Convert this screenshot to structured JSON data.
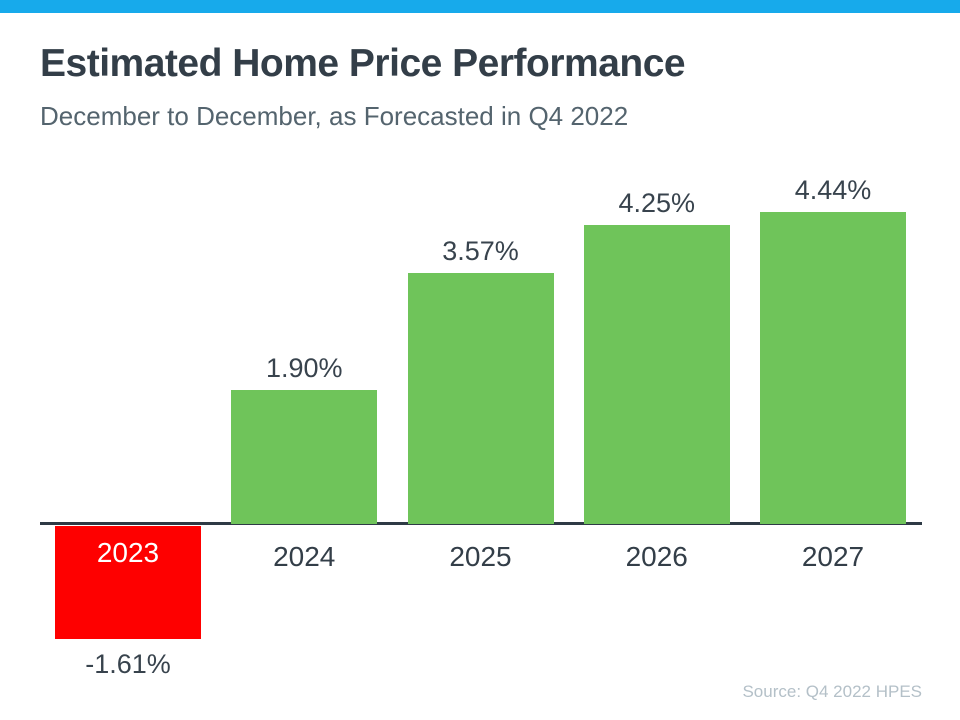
{
  "page": {
    "top_bar_color": "#17AAEB",
    "title": "Estimated Home Price Performance",
    "subtitle": "December to December, as Forecasted in Q4 2022",
    "source": "Source: Q4 2022 HPES"
  },
  "chart_data": {
    "type": "bar",
    "title": "Estimated Home Price Performance",
    "subtitle": "December to December, as Forecasted in Q4 2022",
    "categories": [
      "2023",
      "2024",
      "2025",
      "2026",
      "2027"
    ],
    "values": [
      -1.61,
      1.9,
      3.57,
      4.25,
      4.44
    ],
    "value_labels": [
      "-1.61%",
      "1.90%",
      "3.57%",
      "4.25%",
      "4.44%"
    ],
    "xlabel": "",
    "ylabel": "",
    "ylim": [
      -2,
      5
    ],
    "grid": false,
    "legend_position": "none",
    "positive_color": "#6FC45A",
    "negative_color": "#FE0000",
    "axis_color": "#2E3A45",
    "label_color": "#333E48",
    "negative_year_label_color": "#FFFFFF",
    "source": "Source: Q4 2022 HPES"
  }
}
